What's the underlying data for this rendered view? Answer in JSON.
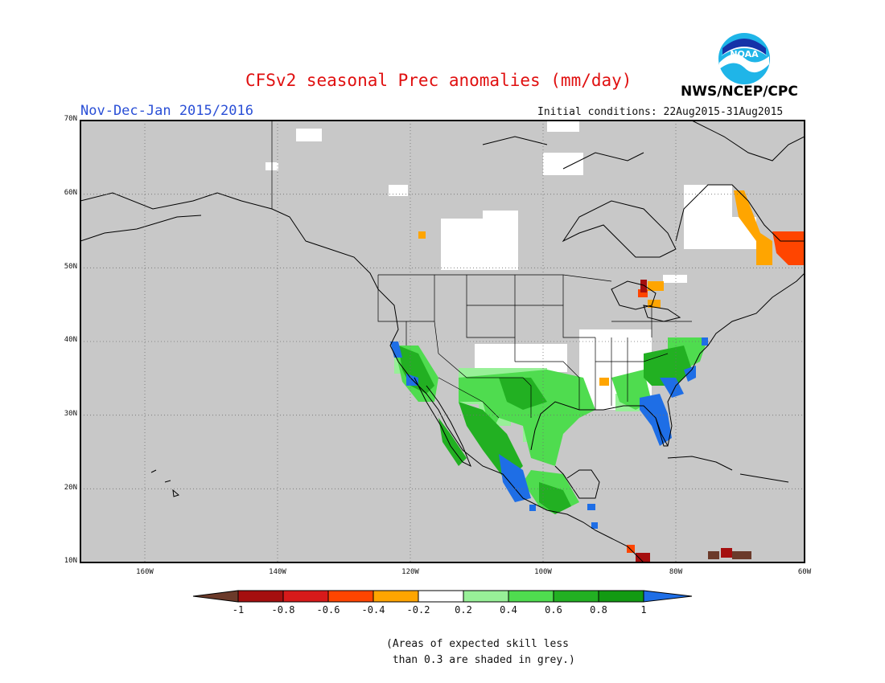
{
  "title": "CFSv2 seasonal Prec anomalies (mm/day)",
  "period": "Nov-Dec-Jan 2015/2016",
  "initial_conditions": "Initial conditions: 22Aug2015-31Aug2015",
  "organization": "NWS/NCEP/CPC",
  "logo": {
    "text": "NOAA",
    "icon": "noaa-logo-icon"
  },
  "lat_labels": [
    "70N",
    "60N",
    "50N",
    "40N",
    "30N",
    "20N",
    "10N"
  ],
  "lon_labels": [
    "160W",
    "140W",
    "120W",
    "100W",
    "80W",
    "60W"
  ],
  "colorbar": {
    "labels": [
      "-1",
      "-0.8",
      "-0.6",
      "-0.4",
      "-0.2",
      "0.2",
      "0.4",
      "0.6",
      "0.8",
      "1"
    ],
    "colors": [
      "#6b3a2a",
      "#a50f0f",
      "#d71a1a",
      "#ff4500",
      "#ffa500",
      "#ffffff",
      "#98f098",
      "#4fdc4f",
      "#22b022",
      "#129a12",
      "#1e6ee6"
    ]
  },
  "note_line1": "(Areas of expected skill less",
  "note_line2": " than 0.3 are shaded in grey.)",
  "colors": {
    "grey_mask": "#c8c8c8",
    "coast": "#000000",
    "title": "#e01010",
    "period": "#2a4fd6"
  }
}
